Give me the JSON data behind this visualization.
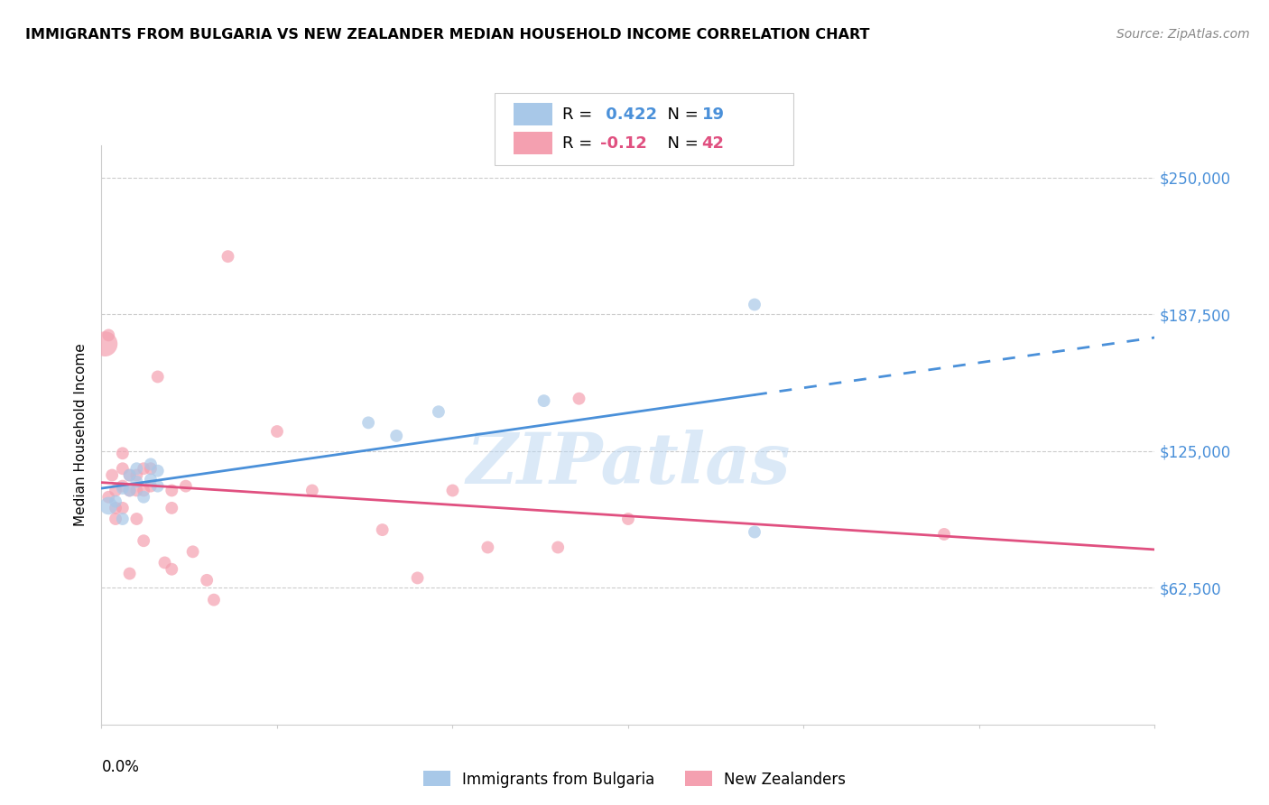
{
  "title": "IMMIGRANTS FROM BULGARIA VS NEW ZEALANDER MEDIAN HOUSEHOLD INCOME CORRELATION CHART",
  "source": "Source: ZipAtlas.com",
  "ylabel": "Median Household Income",
  "y_ticks": [
    62500,
    125000,
    187500,
    250000
  ],
  "y_tick_labels": [
    "$62,500",
    "$125,000",
    "$187,500",
    "$250,000"
  ],
  "x_min": 0.0,
  "x_max": 0.15,
  "y_min": 0,
  "y_max": 265000,
  "r_bulgaria": 0.422,
  "n_bulgaria": 19,
  "r_newzealand": -0.12,
  "n_newzealand": 42,
  "blue_color": "#a8c8e8",
  "blue_line_color": "#4a90d9",
  "pink_color": "#f4a0b0",
  "pink_line_color": "#e05080",
  "legend_label1": "Immigrants from Bulgaria",
  "legend_label2": "New Zealanders",
  "watermark": "ZIPatlas",
  "blue_scatter_x": [
    0.001,
    0.002,
    0.003,
    0.003,
    0.004,
    0.004,
    0.005,
    0.005,
    0.006,
    0.007,
    0.007,
    0.008,
    0.008,
    0.038,
    0.042,
    0.048,
    0.063,
    0.093,
    0.093
  ],
  "blue_scatter_y": [
    100000,
    102000,
    108000,
    94000,
    114000,
    107000,
    111000,
    117000,
    104000,
    119000,
    112000,
    116000,
    109000,
    138000,
    132000,
    143000,
    148000,
    192000,
    88000
  ],
  "blue_scatter_size": [
    200,
    100,
    100,
    100,
    100,
    100,
    100,
    100,
    100,
    100,
    100,
    100,
    100,
    100,
    100,
    100,
    100,
    100,
    100
  ],
  "pink_scatter_x": [
    0.0005,
    0.001,
    0.001,
    0.0015,
    0.002,
    0.002,
    0.002,
    0.003,
    0.003,
    0.003,
    0.003,
    0.004,
    0.004,
    0.004,
    0.005,
    0.005,
    0.005,
    0.006,
    0.006,
    0.006,
    0.007,
    0.007,
    0.008,
    0.009,
    0.01,
    0.01,
    0.01,
    0.012,
    0.013,
    0.015,
    0.016,
    0.018,
    0.025,
    0.03,
    0.04,
    0.045,
    0.05,
    0.055,
    0.065,
    0.068,
    0.075,
    0.12
  ],
  "pink_scatter_y": [
    174000,
    178000,
    104000,
    114000,
    107000,
    99000,
    94000,
    124000,
    117000,
    109000,
    99000,
    114000,
    107000,
    69000,
    114000,
    107000,
    94000,
    117000,
    107000,
    84000,
    117000,
    109000,
    159000,
    74000,
    107000,
    99000,
    71000,
    109000,
    79000,
    66000,
    57000,
    214000,
    134000,
    107000,
    89000,
    67000,
    107000,
    81000,
    81000,
    149000,
    94000,
    87000
  ],
  "pink_scatter_size": [
    400,
    100,
    100,
    100,
    100,
    100,
    100,
    100,
    100,
    100,
    100,
    100,
    100,
    100,
    100,
    100,
    100,
    100,
    100,
    100,
    100,
    100,
    100,
    100,
    100,
    100,
    100,
    100,
    100,
    100,
    100,
    100,
    100,
    100,
    100,
    100,
    100,
    100,
    100,
    100,
    100,
    100
  ]
}
